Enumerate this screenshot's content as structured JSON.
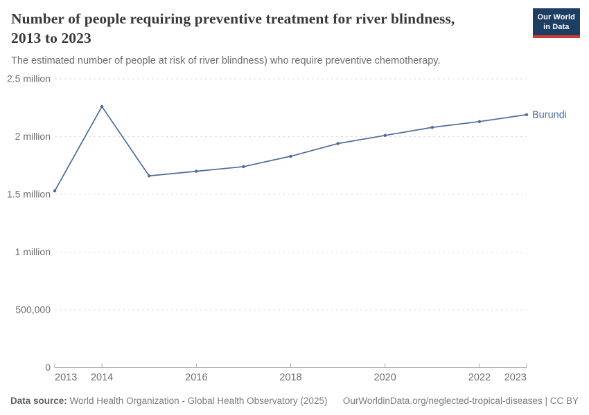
{
  "header": {
    "title_line1": "Number of people requiring preventive treatment for river blindness,",
    "title_line2": "2013 to 2023",
    "subtitle": "The estimated number of people at risk of river blindness) who require preventive chemotherapy.",
    "logo": {
      "line1": "Our World",
      "line2": "in Data"
    }
  },
  "footer": {
    "datasource_label": "Data source:",
    "datasource_value": " World Health Organization - Global Health Observatory (2025)",
    "link": "OurWorldinData.org/neglected-tropical-diseases | CC BY"
  },
  "colors": {
    "line_blue": "#4C6A9C",
    "logo_navy": "#1d3d63",
    "logo_red": "#d13b32",
    "gridline_gray": "#dcdcdc",
    "axis_gray": "#a8a8a8",
    "tick_text_gray": "#6e6e6e"
  },
  "chart_data": {
    "type": "line",
    "title": "Number of people requiring preventive treatment for river blindness, 2013 to 2023",
    "subtitle": "The estimated number of people at risk of river blindness) who require preventive chemotherapy.",
    "xlabel": "",
    "ylabel": "",
    "xlim": [
      2013,
      2023
    ],
    "ylim": [
      0,
      2500000
    ],
    "grid": "horizontal-dashed",
    "legend_position": "end-of-line-label",
    "xticks": [
      2013,
      2014,
      2016,
      2018,
      2020,
      2022,
      2023
    ],
    "yticks": [
      {
        "value": 0,
        "label": "0"
      },
      {
        "value": 500000,
        "label": "500,000"
      },
      {
        "value": 1000000,
        "label": "1 million"
      },
      {
        "value": 1500000,
        "label": "1.5 million"
      },
      {
        "value": 2000000,
        "label": "2 million"
      },
      {
        "value": 2500000,
        "label": "2.5 million"
      }
    ],
    "series": [
      {
        "name": "Burundi",
        "color": "#4C6A9C",
        "x": [
          2013,
          2014,
          2015,
          2016,
          2017,
          2018,
          2019,
          2020,
          2021,
          2022,
          2023
        ],
        "values": [
          1530000,
          2260000,
          1660000,
          1700000,
          1740000,
          1830000,
          1940000,
          2010000,
          2080000,
          2130000,
          2190000
        ]
      }
    ]
  }
}
